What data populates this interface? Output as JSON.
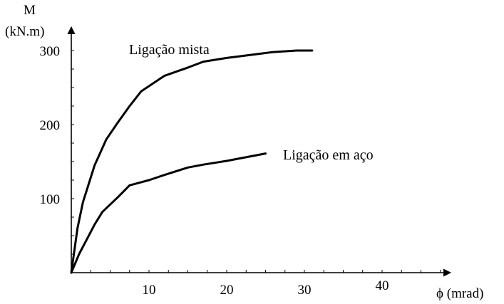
{
  "chart_data": {
    "type": "line",
    "ylabel_line1": "M",
    "ylabel_line2": "(kN.m)",
    "xlabel": "ϕ (mrad)",
    "x_ticks": [
      10,
      20,
      30,
      40
    ],
    "y_ticks": [
      100,
      200,
      300
    ],
    "xlim": [
      0,
      45
    ],
    "ylim": [
      0,
      300
    ],
    "grid": false,
    "series": [
      {
        "name": "Ligação mista",
        "x": [
          0,
          0.8,
          1.5,
          3,
          4.5,
          6,
          7.5,
          9,
          12,
          15,
          17,
          20,
          23,
          26,
          29,
          31
        ],
        "y": [
          0,
          60,
          95,
          145,
          180,
          203,
          225,
          245,
          266,
          277,
          285,
          290,
          294,
          298,
          300,
          300
        ]
      },
      {
        "name": "Ligação em aço",
        "x": [
          0,
          1,
          2,
          3,
          4,
          5,
          6,
          7.5,
          10,
          12,
          15,
          17,
          20,
          25
        ],
        "y": [
          0,
          25,
          45,
          65,
          82,
          92,
          102,
          118,
          125,
          132,
          142,
          146,
          151,
          161
        ]
      }
    ]
  }
}
